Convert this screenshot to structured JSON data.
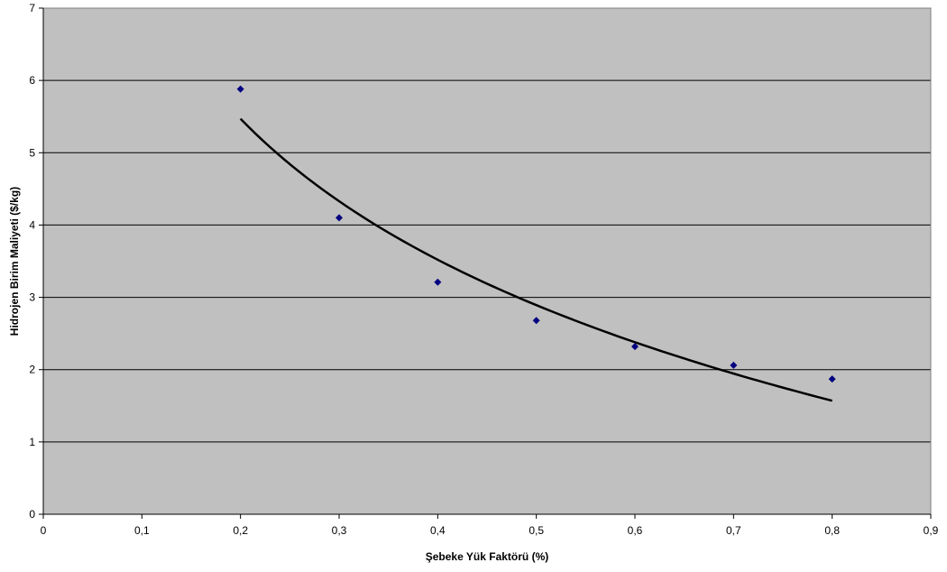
{
  "chart_data": {
    "type": "scatter",
    "title": "",
    "xlabel": "Şebeke Yük Faktörü (%)",
    "ylabel": "Hidrojen Birim Maliyeti ($/kg)",
    "xlim": [
      0,
      0.9
    ],
    "ylim": [
      0,
      7
    ],
    "x_ticks": [
      0,
      0.1,
      0.2,
      0.3,
      0.4,
      0.5,
      0.6,
      0.7,
      0.8,
      0.9
    ],
    "x_tick_labels": [
      "0",
      "0,1",
      "0,2",
      "0,3",
      "0,4",
      "0,5",
      "0,6",
      "0,7",
      "0,8",
      "0,9"
    ],
    "y_ticks": [
      0,
      1,
      2,
      3,
      4,
      5,
      6,
      7
    ],
    "y_tick_labels": [
      "0",
      "1",
      "2",
      "3",
      "4",
      "5",
      "6",
      "7"
    ],
    "grid": {
      "horizontal": true,
      "vertical": false
    },
    "legend": "none",
    "colors": {
      "plot_background": "#c0c0c0",
      "gridline": "#000000",
      "marker": "#000080",
      "trendline": "#000000"
    },
    "series": [
      {
        "marker": "diamond",
        "x": [
          0.2,
          0.3,
          0.4,
          0.5,
          0.6,
          0.7,
          0.8
        ],
        "y": [
          5.88,
          4.1,
          3.21,
          2.68,
          2.32,
          2.06,
          1.87
        ]
      }
    ],
    "trendline": {
      "type": "logarithmic",
      "x_range": [
        0.2,
        0.8
      ],
      "y_start": 5.47,
      "y_end": 1.57
    }
  }
}
